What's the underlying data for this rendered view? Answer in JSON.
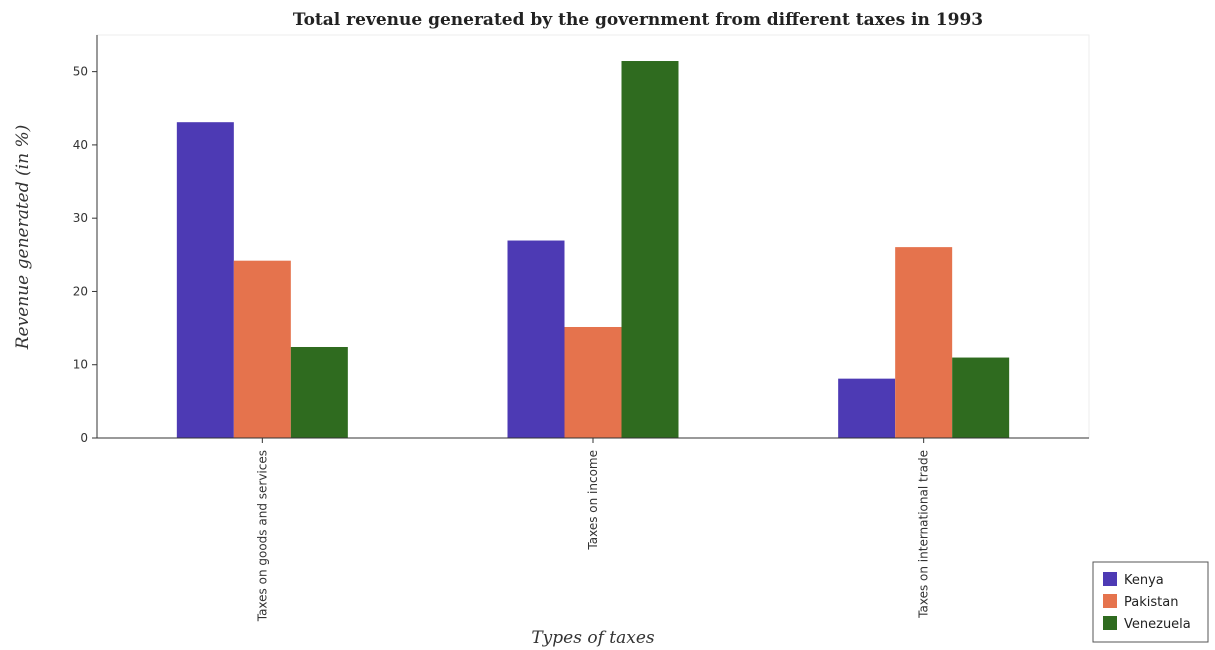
{
  "chart_data": {
    "type": "bar",
    "title": "Total revenue generated by the government from different taxes in 1993",
    "xlabel": "Types of taxes",
    "ylabel": "Revenue generated (in %)",
    "categories": [
      "Taxes on goods and services",
      "Taxes on income",
      "Taxes on international trade"
    ],
    "series": [
      {
        "name": "Kenya",
        "color": "#4d3ab4",
        "values": [
          43.1,
          26.95,
          8.1
        ]
      },
      {
        "name": "Pakistan",
        "color": "#e5734d",
        "values": [
          24.2,
          15.15,
          26.05
        ]
      },
      {
        "name": "Venezuela",
        "color": "#2f6b1f",
        "values": [
          12.42,
          51.45,
          10.98
        ]
      }
    ],
    "ylim": [
      0,
      55
    ],
    "yticks": [
      0,
      10,
      20,
      30,
      40,
      50
    ],
    "grid": false,
    "legend_position": "bottom-right"
  }
}
